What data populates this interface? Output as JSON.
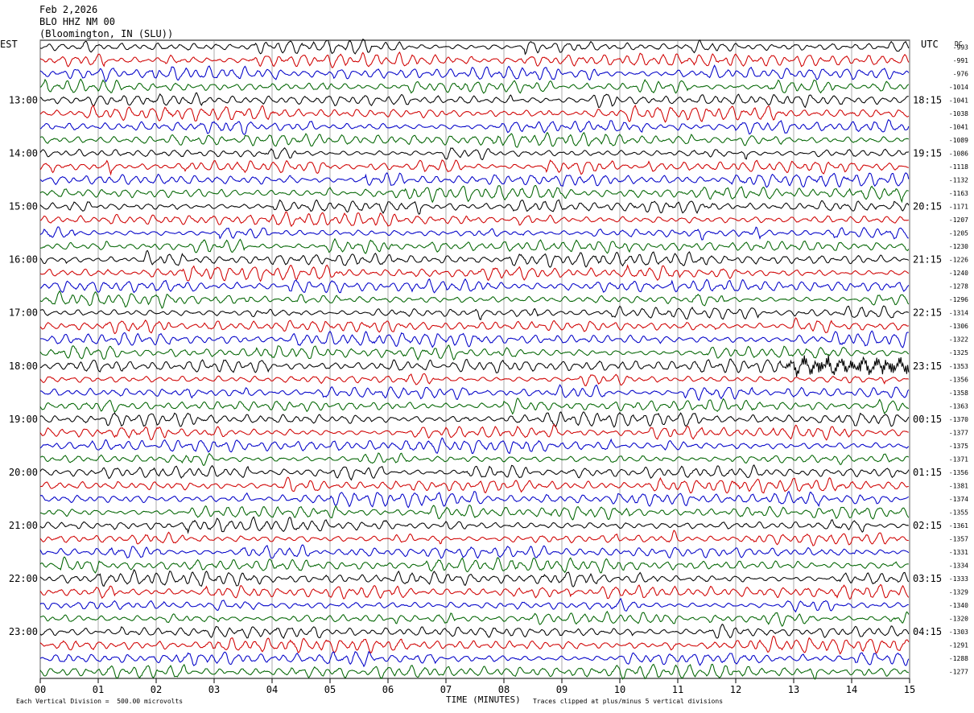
{
  "header": {
    "date": "Feb 2,2026",
    "station": "BLO HHZ NM 00",
    "location": "(Bloomington, IN (SLU))"
  },
  "corners": {
    "left": "EST",
    "right": "UTC",
    "dc_label": "DC"
  },
  "footer": {
    "scale_note": "Each Vertical Division =  500.00 microvolts",
    "axis_title": "TIME (MINUTES)",
    "clip_note": "Traces clipped at plus/minus 5 vertical divisions"
  },
  "chart_data": {
    "type": "line",
    "x_label": "TIME (MINUTES)",
    "x_ticks": [
      "00",
      "01",
      "02",
      "03",
      "04",
      "05",
      "06",
      "07",
      "08",
      "09",
      "10",
      "11",
      "12",
      "13",
      "14",
      "15"
    ],
    "x_range": [
      0,
      15
    ],
    "minutes_per_line": 15,
    "trace_colors": [
      "#000000",
      "#d00000",
      "#0000c8",
      "#006400"
    ],
    "left_hour_labels": [
      "13:00",
      "14:00",
      "15:00",
      "16:00",
      "17:00",
      "18:00",
      "19:00",
      "20:00",
      "21:00",
      "22:00",
      "23:00"
    ],
    "right_hour_labels": [
      "18:15",
      "19:15",
      "20:15",
      "21:15",
      "22:15",
      "23:15",
      "00:15",
      "01:15",
      "02:15",
      "03:15",
      "04:15"
    ],
    "hour_label_first_line": 4,
    "dc_offsets": [
      -993,
      -991,
      -976,
      -1014,
      -1041,
      -1038,
      -1041,
      -1089,
      -1086,
      -1118,
      -1132,
      -1163,
      -1171,
      -1207,
      -1205,
      -1230,
      -1226,
      -1240,
      -1278,
      -1296,
      -1314,
      -1306,
      -1322,
      -1325,
      -1353,
      -1356,
      -1358,
      -1363,
      -1370,
      -1377,
      -1375,
      -1371,
      -1356,
      -1381,
      -1374,
      -1355,
      -1361,
      -1357,
      -1331,
      -1334,
      -1333,
      -1329,
      -1340,
      -1320,
      -1303,
      -1291,
      -1288,
      -1277
    ],
    "events": [
      {
        "line_index": 24,
        "start_minute": 12.6,
        "end_minute": 15,
        "note": "high-frequency burst"
      }
    ],
    "vertical_division_microvolts": 500,
    "clip_divisions": 5
  }
}
